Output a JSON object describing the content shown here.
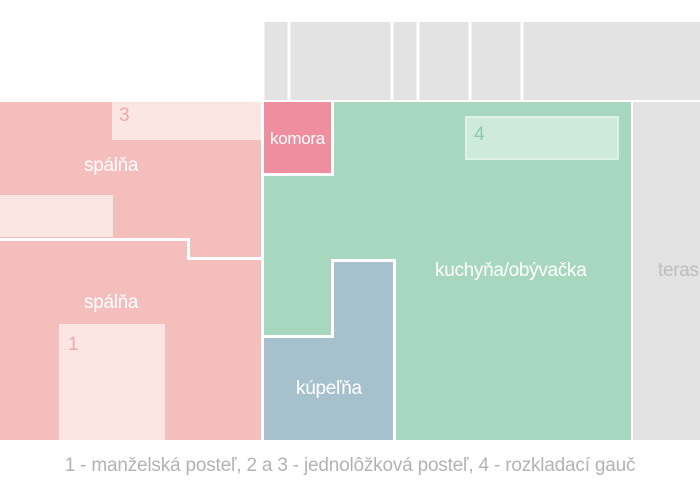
{
  "rooms": {
    "bedroom_top": "spálňa",
    "bedroom_bottom": "spálňa",
    "pantry": "komora",
    "bathroom": "kúpeľňa",
    "kitchen_living": "kuchyňa/obývačka",
    "terrace": "teras"
  },
  "furniture_numbers": {
    "bed_single_a": "3",
    "sofa_bed": "4",
    "double_bed": "1"
  },
  "legend": "1 - manželská posteľ,  2 a 3 - jednolôžková posteľ, 4 - rozkladací gauč",
  "colors": {
    "bedroom": "#f4bebd",
    "furniture_light": "#fbe6e4",
    "kitchen": "#a8d7c0",
    "bathroom": "#a6c0cd",
    "pantry": "#ef8e9f",
    "grey": "#e3e3e4",
    "legend_text": "#b3b3b3"
  }
}
